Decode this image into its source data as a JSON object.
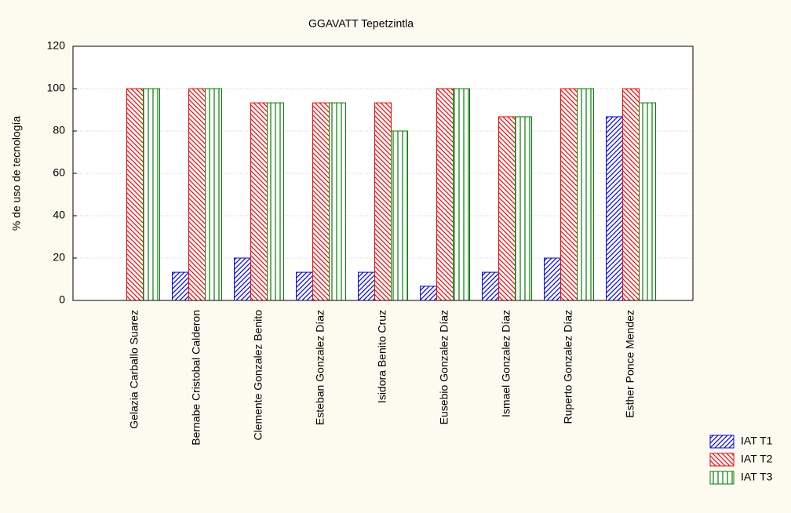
{
  "chart_data": {
    "type": "bar",
    "title": "GGAVATT Tepetzintla",
    "ylabel": "% de uso de tecnología",
    "categories": [
      "Gelazia Carballo Suarez",
      "Bernabe Cristobal Calderon",
      "Clemente Gonzalez Benito",
      "Esteban Gonzalez Díaz",
      "Isidora Benito Cruz",
      "Eusebio Gonzalez Díaz",
      "Ismael Gonzalez Díaz",
      "Ruperto Gonzalez Díaz",
      "Esther Ponce Mendez"
    ],
    "series": [
      {
        "name": "IAT T1",
        "color": "#0000ff",
        "values": [
          0,
          13.3,
          20,
          13.3,
          13.3,
          6.7,
          13.3,
          20,
          86.7
        ]
      },
      {
        "name": "IAT T2",
        "color": "#ff0000",
        "values": [
          100,
          100,
          93.3,
          93.3,
          93.3,
          100,
          86.7,
          100,
          100
        ]
      },
      {
        "name": "IAT T3",
        "color": "#008000",
        "values": [
          100,
          100,
          93.3,
          93.3,
          80,
          100,
          86.7,
          100,
          93.3
        ]
      }
    ],
    "ylim": [
      0,
      120
    ],
    "yticks": [
      0,
      20,
      40,
      60,
      80,
      100,
      120
    ],
    "grid": true
  }
}
